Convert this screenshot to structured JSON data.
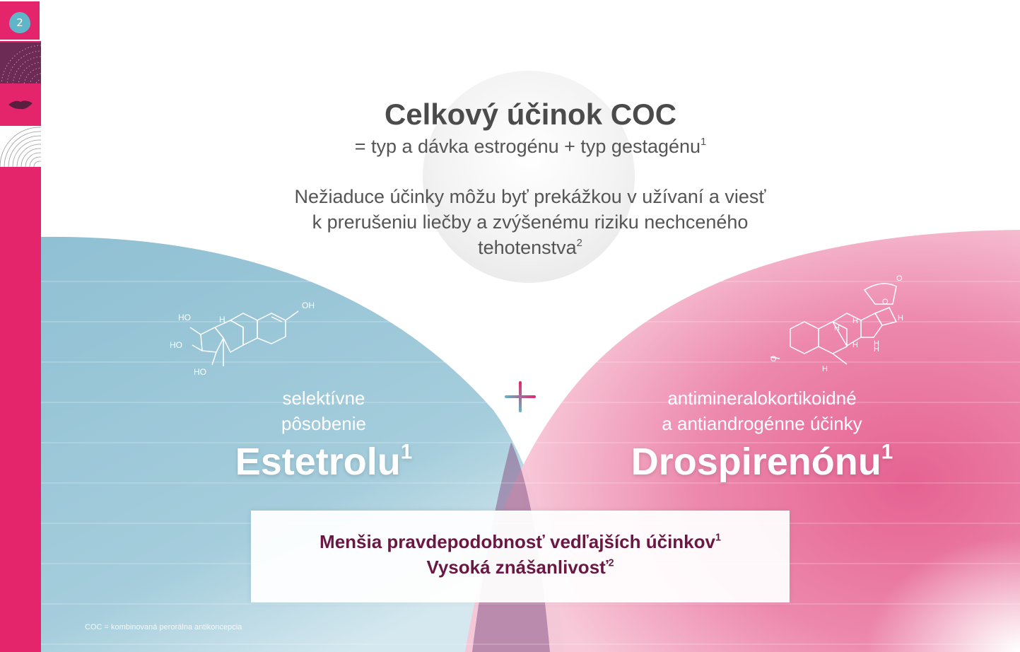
{
  "sidebar": {
    "page_number": "2",
    "items": [
      {
        "name": "page-2",
        "icon": "drop-badge-icon"
      },
      {
        "name": "section-pattern",
        "icon": "dots-pattern-icon"
      },
      {
        "name": "section-lips",
        "icon": "lips-icon"
      },
      {
        "name": "section-arcs",
        "icon": "arcs-pattern-icon"
      }
    ],
    "colors": {
      "accent": "#e4256b",
      "dark": "#6b2b55",
      "badge": "#5fb6c9"
    }
  },
  "title": "Celkový účinok COC",
  "subtitle": {
    "text": "= typ a dávka estrogénu + typ gestagénu",
    "sup": "1"
  },
  "intro": {
    "line1": "Nežiaduce účinky môžu byť prekážkou v užívaní a viesť",
    "line2": "k prerušeniu liečby a zvýšenému riziku nechceného",
    "line3": "tehotenstva",
    "sup": "2"
  },
  "left": {
    "line1": "selektívne",
    "line2": "pôsobenie",
    "name": "Estetrolu",
    "sup": "1",
    "molecule_labels": [
      "HO",
      "HO",
      "HO",
      "OH",
      "H"
    ],
    "color": "#9cc8d8"
  },
  "right": {
    "line1": "antimineralokortikoidné",
    "line2": "a antiandrogénne účinky",
    "name": "Drospirenónu",
    "sup": "1",
    "molecule_labels": [
      "O",
      "O",
      "O",
      "H",
      "H",
      "H",
      "H",
      "H",
      "H",
      "H"
    ],
    "color": "#e8739c"
  },
  "plus_icon": "plus-icon",
  "result": {
    "line1": "Menšia pravdepodobnosť vedľajších účinkov",
    "line1_sup": "1",
    "line2": "Vysoká znášanlivosť",
    "line2_sup": "2",
    "color": "#6a1744"
  },
  "footnote": "COC = kombinovaná perorálna antikoncepcia"
}
